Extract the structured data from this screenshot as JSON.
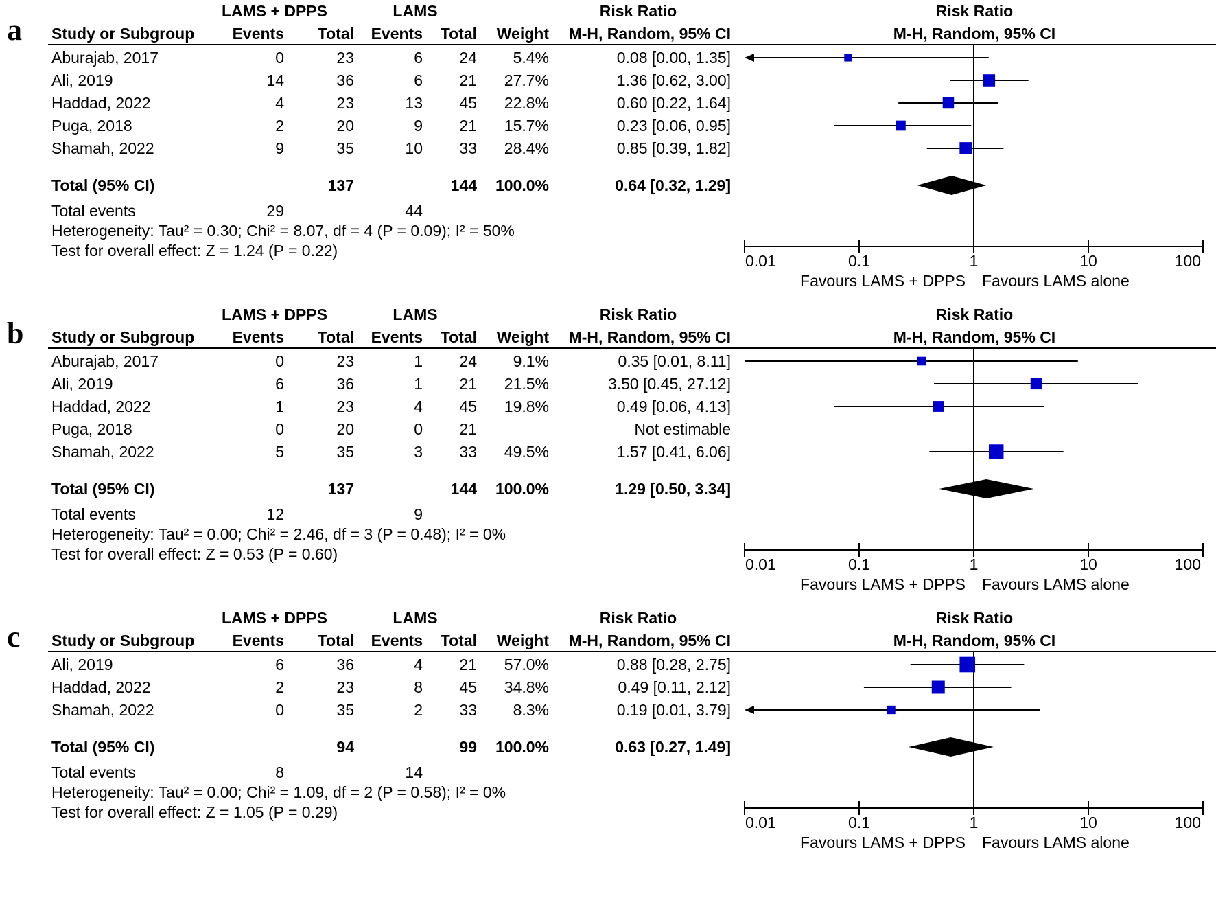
{
  "headers": {
    "group1": "LAMS + DPPS",
    "group2": "LAMS",
    "rr": "Risk Ratio",
    "study": "Study or Subgroup",
    "events": "Events",
    "total": "Total",
    "weight": "Weight",
    "method": "M-H, Random, 95% CI"
  },
  "labels": {
    "total_ci": "Total (95% CI)",
    "total_events": "Total events",
    "favours_left": "Favours LAMS + DPPS",
    "favours_right": "Favours LAMS alone"
  },
  "colors": {
    "marker": "#0000cc",
    "ink": "#000000"
  },
  "chart_data": [
    {
      "type": "forest",
      "panel_label": "a",
      "x_scale": "log",
      "xlim": [
        0.01,
        100
      ],
      "ticks": [
        "0.01",
        "0.1",
        "1",
        "10",
        "100"
      ],
      "tick_values": [
        0.01,
        0.1,
        1,
        10,
        100
      ],
      "studies": [
        {
          "name": "Aburajab, 2017",
          "e1": "0",
          "t1": "23",
          "e2": "6",
          "t2": "24",
          "weight": "5.4%",
          "ci_text": "0.08 [0.00, 1.35]",
          "rr": 0.08,
          "lo": 0.0,
          "hi": 1.35,
          "w": 5.4,
          "arrow": "left"
        },
        {
          "name": "Ali, 2019",
          "e1": "14",
          "t1": "36",
          "e2": "6",
          "t2": "21",
          "weight": "27.7%",
          "ci_text": "1.36 [0.62, 3.00]",
          "rr": 1.36,
          "lo": 0.62,
          "hi": 3.0,
          "w": 27.7
        },
        {
          "name": "Haddad, 2022",
          "e1": "4",
          "t1": "23",
          "e2": "13",
          "t2": "45",
          "weight": "22.8%",
          "ci_text": "0.60 [0.22, 1.64]",
          "rr": 0.6,
          "lo": 0.22,
          "hi": 1.64,
          "w": 22.8
        },
        {
          "name": "Puga, 2018",
          "e1": "2",
          "t1": "20",
          "e2": "9",
          "t2": "21",
          "weight": "15.7%",
          "ci_text": "0.23 [0.06, 0.95]",
          "rr": 0.23,
          "lo": 0.06,
          "hi": 0.95,
          "w": 15.7
        },
        {
          "name": "Shamah, 2022",
          "e1": "9",
          "t1": "35",
          "e2": "10",
          "t2": "33",
          "weight": "28.4%",
          "ci_text": "0.85 [0.39, 1.82]",
          "rr": 0.85,
          "lo": 0.39,
          "hi": 1.82,
          "w": 28.4
        }
      ],
      "total": {
        "t1": "137",
        "t2": "144",
        "weight": "100.0%",
        "ci_text": "0.64 [0.32, 1.29]",
        "rr": 0.64,
        "lo": 0.32,
        "hi": 1.29
      },
      "total_events": {
        "e1": "29",
        "e2": "44"
      },
      "heterogeneity": "Heterogeneity: Tau² = 0.30; Chi² = 8.07, df = 4 (P = 0.09); I² = 50%",
      "overall": "Test for overall effect: Z = 1.24 (P = 0.22)"
    },
    {
      "type": "forest",
      "panel_label": "b",
      "x_scale": "log",
      "xlim": [
        0.01,
        100
      ],
      "ticks": [
        "0.01",
        "0.1",
        "1",
        "10",
        "100"
      ],
      "tick_values": [
        0.01,
        0.1,
        1,
        10,
        100
      ],
      "studies": [
        {
          "name": "Aburajab, 2017",
          "e1": "0",
          "t1": "23",
          "e2": "1",
          "t2": "24",
          "weight": "9.1%",
          "ci_text": "0.35 [0.01, 8.11]",
          "rr": 0.35,
          "lo": 0.01,
          "hi": 8.11,
          "w": 9.1
        },
        {
          "name": "Ali, 2019",
          "e1": "6",
          "t1": "36",
          "e2": "1",
          "t2": "21",
          "weight": "21.5%",
          "ci_text": "3.50 [0.45, 27.12]",
          "rr": 3.5,
          "lo": 0.45,
          "hi": 27.12,
          "w": 21.5
        },
        {
          "name": "Haddad, 2022",
          "e1": "1",
          "t1": "23",
          "e2": "4",
          "t2": "45",
          "weight": "19.8%",
          "ci_text": "0.49 [0.06, 4.13]",
          "rr": 0.49,
          "lo": 0.06,
          "hi": 4.13,
          "w": 19.8
        },
        {
          "name": "Puga, 2018",
          "e1": "0",
          "t1": "20",
          "e2": "0",
          "t2": "21",
          "weight": "",
          "ci_text": "Not estimable"
        },
        {
          "name": "Shamah, 2022",
          "e1": "5",
          "t1": "35",
          "e2": "3",
          "t2": "33",
          "weight": "49.5%",
          "ci_text": "1.57 [0.41, 6.06]",
          "rr": 1.57,
          "lo": 0.41,
          "hi": 6.06,
          "w": 49.5
        }
      ],
      "total": {
        "t1": "137",
        "t2": "144",
        "weight": "100.0%",
        "ci_text": "1.29 [0.50, 3.34]",
        "rr": 1.29,
        "lo": 0.5,
        "hi": 3.34
      },
      "total_events": {
        "e1": "12",
        "e2": "9"
      },
      "heterogeneity": "Heterogeneity: Tau² = 0.00; Chi² = 2.46, df = 3 (P = 0.48); I² = 0%",
      "overall": "Test for overall effect: Z = 0.53 (P = 0.60)"
    },
    {
      "type": "forest",
      "panel_label": "c",
      "x_scale": "log",
      "xlim": [
        0.01,
        100
      ],
      "ticks": [
        "0.01",
        "0.1",
        "1",
        "10",
        "100"
      ],
      "tick_values": [
        0.01,
        0.1,
        1,
        10,
        100
      ],
      "studies": [
        {
          "name": "Ali, 2019",
          "e1": "6",
          "t1": "36",
          "e2": "4",
          "t2": "21",
          "weight": "57.0%",
          "ci_text": "0.88 [0.28, 2.75]",
          "rr": 0.88,
          "lo": 0.28,
          "hi": 2.75,
          "w": 57.0
        },
        {
          "name": "Haddad, 2022",
          "e1": "2",
          "t1": "23",
          "e2": "8",
          "t2": "45",
          "weight": "34.8%",
          "ci_text": "0.49 [0.11, 2.12]",
          "rr": 0.49,
          "lo": 0.11,
          "hi": 2.12,
          "w": 34.8
        },
        {
          "name": "Shamah, 2022",
          "e1": "0",
          "t1": "35",
          "e2": "2",
          "t2": "33",
          "weight": "8.3%",
          "ci_text": "0.19 [0.01, 3.79]",
          "rr": 0.19,
          "lo": 0.01,
          "hi": 3.79,
          "w": 8.3,
          "arrow": "left"
        }
      ],
      "total": {
        "t1": "94",
        "t2": "99",
        "weight": "100.0%",
        "ci_text": "0.63 [0.27, 1.49]",
        "rr": 0.63,
        "lo": 0.27,
        "hi": 1.49
      },
      "total_events": {
        "e1": "8",
        "e2": "14"
      },
      "heterogeneity": "Heterogeneity: Tau² = 0.00; Chi² = 1.09, df = 2 (P = 0.58); I² = 0%",
      "overall": "Test for overall effect: Z = 1.05 (P = 0.29)"
    }
  ]
}
